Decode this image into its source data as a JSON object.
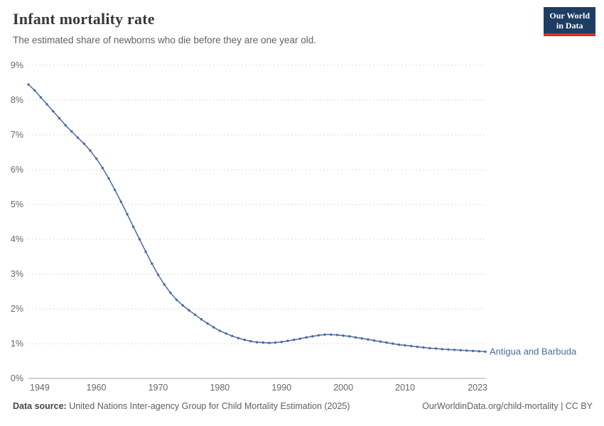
{
  "header": {
    "title": "Infant mortality rate",
    "subtitle": "The estimated share of newborns who die before they are one year old."
  },
  "logo": {
    "line1": "Our World",
    "line2": "in Data"
  },
  "chart_data": {
    "type": "line",
    "title": "Infant mortality rate",
    "xlabel": "",
    "ylabel": "",
    "xlim": [
      1949,
      2023
    ],
    "ylim": [
      0,
      9
    ],
    "grid": "dashed-horizontal",
    "legend_position": "end-of-line-label",
    "x_ticks": [
      "1949",
      "1960",
      "1970",
      "1980",
      "1990",
      "2000",
      "2010",
      "2023"
    ],
    "x_tick_years": [
      1949,
      1960,
      1970,
      1980,
      1990,
      2000,
      2010,
      2023
    ],
    "y_ticks": [
      "0%",
      "1%",
      "2%",
      "3%",
      "4%",
      "5%",
      "6%",
      "7%",
      "8%",
      "9%"
    ],
    "y_tick_values": [
      0,
      1,
      2,
      3,
      4,
      5,
      6,
      7,
      8,
      9
    ],
    "series": [
      {
        "name": "Antigua and Barbuda",
        "color": "#4c6a9c",
        "x": [
          1949,
          1950,
          1951,
          1952,
          1953,
          1954,
          1955,
          1956,
          1957,
          1958,
          1959,
          1960,
          1961,
          1962,
          1963,
          1964,
          1965,
          1966,
          1967,
          1968,
          1969,
          1970,
          1971,
          1972,
          1973,
          1974,
          1975,
          1976,
          1977,
          1978,
          1979,
          1980,
          1981,
          1982,
          1983,
          1984,
          1985,
          1986,
          1987,
          1988,
          1989,
          1990,
          1991,
          1992,
          1993,
          1994,
          1995,
          1996,
          1997,
          1998,
          1999,
          2000,
          2001,
          2002,
          2003,
          2004,
          2005,
          2006,
          2007,
          2008,
          2009,
          2010,
          2011,
          2012,
          2013,
          2014,
          2015,
          2016,
          2017,
          2018,
          2019,
          2020,
          2021,
          2022,
          2023
        ],
        "values": [
          8.45,
          8.28,
          8.08,
          7.88,
          7.68,
          7.48,
          7.28,
          7.1,
          6.92,
          6.75,
          6.55,
          6.32,
          6.05,
          5.75,
          5.42,
          5.08,
          4.72,
          4.36,
          4.0,
          3.64,
          3.3,
          2.98,
          2.7,
          2.46,
          2.26,
          2.1,
          1.96,
          1.83,
          1.7,
          1.58,
          1.47,
          1.37,
          1.29,
          1.22,
          1.16,
          1.11,
          1.07,
          1.04,
          1.03,
          1.02,
          1.03,
          1.05,
          1.08,
          1.11,
          1.14,
          1.18,
          1.21,
          1.24,
          1.26,
          1.26,
          1.25,
          1.23,
          1.21,
          1.18,
          1.15,
          1.12,
          1.09,
          1.06,
          1.03,
          1.0,
          0.97,
          0.95,
          0.93,
          0.91,
          0.89,
          0.87,
          0.86,
          0.84,
          0.83,
          0.82,
          0.81,
          0.8,
          0.79,
          0.78,
          0.77
        ]
      }
    ]
  },
  "footer": {
    "source_label": "Data source:",
    "source_text": " United Nations Inter-agency Group for Child Mortality Estimation (2025)",
    "right_text": "OurWorldinData.org/child-mortality | CC BY"
  }
}
